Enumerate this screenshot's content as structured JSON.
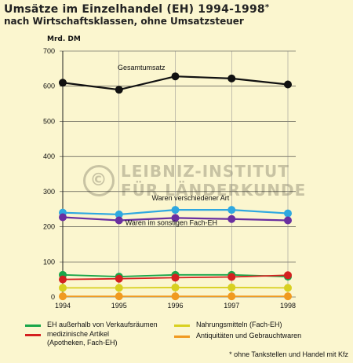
{
  "title": "Umsätze im Einzelhandel (EH) 1994-1998",
  "title_star": "*",
  "subtitle": "nach Wirtschaftsklassen, ohne Umsatzsteuer",
  "watermark": {
    "line1": "LEIBNIZ-INSTITUT",
    "line2": "FÜR LÄNDERKUNDE",
    "symbol": "©"
  },
  "legend": [
    {
      "label": "EH außerhalb von Verkaufsräumen",
      "color": "#1aa64a"
    },
    {
      "label": "medizinische Artikel\n(Apotheken, Fach-EH)",
      "color": "#d42020"
    },
    {
      "label": "Nahrungsmitteln (Fach-EH)",
      "color": "#d8d020"
    },
    {
      "label": "Antiquitäten und Gebrauchtwaren",
      "color": "#f09a20"
    }
  ],
  "footnote": "* ohne Tankstellen und Handel mit Kfz",
  "chart_data": {
    "type": "line",
    "ylabel": "Mrd. DM",
    "x": [
      "1994",
      "1995",
      "1996",
      "1997",
      "1998"
    ],
    "ylim": [
      0,
      700
    ],
    "yticks": [
      0,
      100,
      200,
      300,
      400,
      500,
      600,
      700
    ],
    "grid": true,
    "series": [
      {
        "name": "Gesamtumsatz",
        "values": [
          610,
          590,
          628,
          622,
          605
        ],
        "color": "#111111"
      },
      {
        "name": "Waren verschiedener Art",
        "values": [
          240,
          235,
          248,
          248,
          238
        ],
        "color": "#2fa8e0"
      },
      {
        "name": "Waren im sonstigen Fach-EH",
        "values": [
          227,
          218,
          225,
          222,
          218
        ],
        "color": "#6a2fa0"
      },
      {
        "name": "EH außerhalb von Verkaufsräumen",
        "values": [
          63,
          58,
          63,
          63,
          58
        ],
        "color": "#1aa64a"
      },
      {
        "name": "medizinische Artikel (Apotheken, Fach-EH)",
        "values": [
          50,
          52,
          55,
          57,
          62
        ],
        "color": "#d42020"
      },
      {
        "name": "Nahrungsmitteln (Fach-EH)",
        "values": [
          26,
          26,
          27,
          27,
          26
        ],
        "color": "#d8d020"
      },
      {
        "name": "Antiquitäten und Gebrauchtwaren",
        "values": [
          2,
          2,
          2,
          2,
          2
        ],
        "color": "#f09a20"
      }
    ],
    "annotations": [
      {
        "text": "Gesamtumsatz",
        "series": 0
      },
      {
        "text": "Waren verschiedener Art",
        "series": 1
      },
      {
        "text": "Waren im sonstigen Fach-EH",
        "series": 2
      }
    ]
  }
}
